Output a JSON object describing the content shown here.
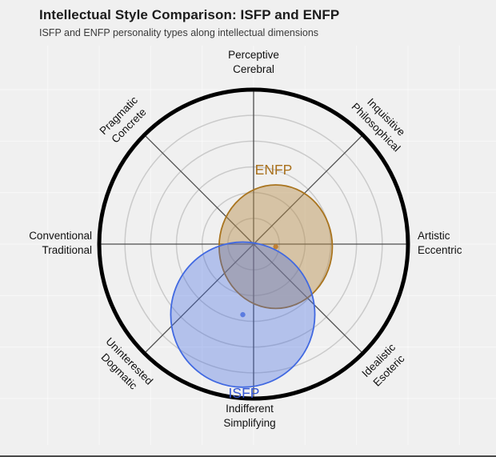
{
  "header": {
    "title": "Intellectual Style Comparison: ISFP and ENFP",
    "subtitle": "ISFP and ENFP personality types along intellectual dimensions"
  },
  "chart_data": {
    "type": "radar-ellipse",
    "title": "Intellectual Style Comparison: ISFP and ENFP",
    "subtitle": "ISFP and ENFP personality types along intellectual dimensions",
    "radial_range": [
      0,
      3
    ],
    "ring_spacing": 0.5,
    "grid_rings": 5,
    "ring_values": [
      0.5,
      1.0,
      1.5,
      2.0,
      2.5
    ],
    "spoke_count": 8,
    "axes": [
      {
        "position": "top",
        "line1": "Perceptive",
        "line2": "Cerebral"
      },
      {
        "position": "top-right",
        "line1": "Inquisitive",
        "line2": "Philosophical"
      },
      {
        "position": "right",
        "line1": "Artistic",
        "line2": "Eccentric"
      },
      {
        "position": "bottom-right",
        "line1": "Idealistic",
        "line2": "Esoteric"
      },
      {
        "position": "bottom",
        "line1": "Indifferent",
        "line2": "Simplifying"
      },
      {
        "position": "bottom-left",
        "line1": "Uninterested",
        "line2": "Dogmatic"
      },
      {
        "position": "left",
        "line1": "Conventional",
        "line2": "Traditional"
      },
      {
        "position": "top-left",
        "line1": "Pragmatic",
        "line2": "Concrete"
      }
    ],
    "series": [
      {
        "name": "ENFP",
        "center_x": 0.43,
        "center_y": -0.05,
        "radius_x": 1.1,
        "radius_y": 1.2,
        "fill": "rgba(181,140,74,0.45)",
        "stroke": "#a9741e",
        "label_color": "#a9701c",
        "marker_color": "#bf8034"
      },
      {
        "name": "ISFP",
        "center_x": -0.21,
        "center_y": -1.37,
        "radius_x": 1.4,
        "radius_y": 1.41,
        "fill": "rgba(65,105,225,0.35)",
        "stroke": "#4169e1",
        "label_color": "#3355d4",
        "marker_color": "#5b7ce0"
      }
    ]
  },
  "colors": {
    "background": "#f0f0f0",
    "outer_circle": "#000000",
    "grid_ring": "#cacaca",
    "spoke": "#4c4c4c",
    "plot_gridline": "rgba(255,255,255,0.55)",
    "text": "#111111"
  }
}
